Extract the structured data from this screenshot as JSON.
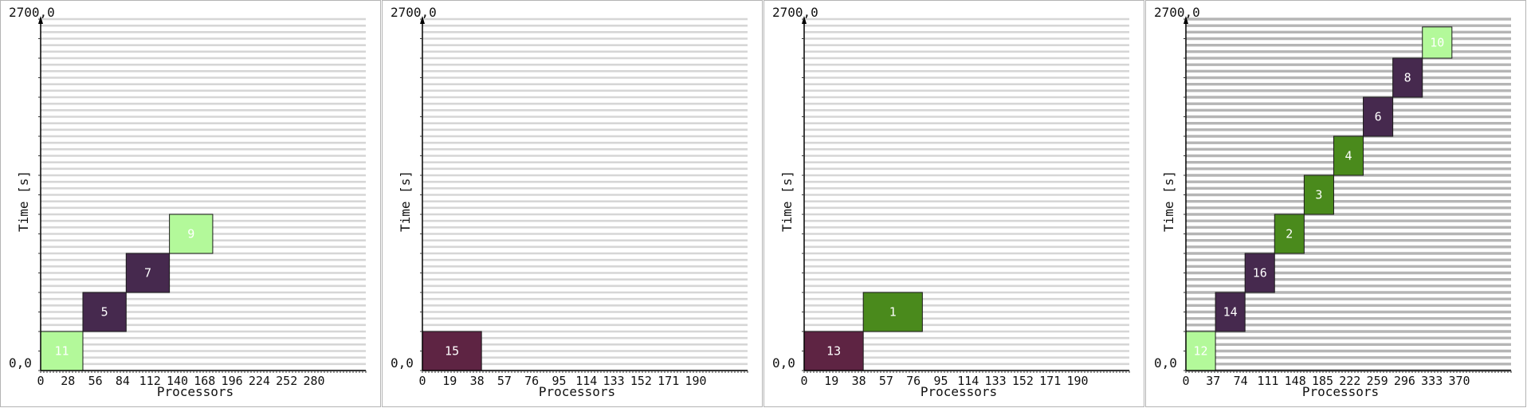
{
  "colors": {
    "light_green": "#b3f99a",
    "dark_purple": "#46294e",
    "maroon": "#5e2443",
    "green": "#4a8a1c",
    "grid_light": "#d6d6d6",
    "grid_dark": "#b5b5b5",
    "axis": "#000000"
  },
  "chart_data": [
    {
      "type": "gantt",
      "title": "",
      "xlabel": "Processors",
      "ylabel": "Time [s]",
      "y_top_label": "2700,0",
      "y_bottom_label": "0,0",
      "xlim": [
        0,
        308
      ],
      "ylim": [
        0,
        2700
      ],
      "x_ticks": [
        "0",
        "28",
        "56",
        "84",
        "112",
        "140",
        "168",
        "196",
        "224",
        "252",
        "280"
      ],
      "grid": "light",
      "jobs": [
        {
          "id": "11",
          "x0": 0,
          "x1": 40,
          "y0": 0,
          "y1": 300,
          "color": "light_green"
        },
        {
          "id": "5",
          "x0": 40,
          "x1": 81,
          "y0": 300,
          "y1": 600,
          "color": "dark_purple"
        },
        {
          "id": "7",
          "x0": 81,
          "x1": 122,
          "y0": 600,
          "y1": 900,
          "color": "dark_purple"
        },
        {
          "id": "9",
          "x0": 122,
          "x1": 163,
          "y0": 900,
          "y1": 1200,
          "color": "light_green"
        }
      ]
    },
    {
      "type": "gantt",
      "title": "",
      "xlabel": "Processors",
      "ylabel": "Time [s]",
      "y_top_label": "2700,0",
      "y_bottom_label": "0,0",
      "xlim": [
        0,
        209
      ],
      "ylim": [
        0,
        2700
      ],
      "x_ticks": [
        "0",
        "19",
        "38",
        "57",
        "76",
        "95",
        "114",
        "133",
        "152",
        "171",
        "190"
      ],
      "grid": "light",
      "jobs": [
        {
          "id": "15",
          "x0": 0,
          "x1": 38,
          "y0": 0,
          "y1": 300,
          "color": "maroon"
        }
      ]
    },
    {
      "type": "gantt",
      "title": "",
      "xlabel": "Processors",
      "ylabel": "Time [s]",
      "y_top_label": "2700,0",
      "y_bottom_label": "0,0",
      "xlim": [
        0,
        209
      ],
      "ylim": [
        0,
        2700
      ],
      "x_ticks": [
        "0",
        "19",
        "38",
        "57",
        "76",
        "95",
        "114",
        "133",
        "152",
        "171",
        "190"
      ],
      "grid": "light",
      "jobs": [
        {
          "id": "13",
          "x0": 0,
          "x1": 38,
          "y0": 0,
          "y1": 300,
          "color": "maroon"
        },
        {
          "id": "1",
          "x0": 38,
          "x1": 76,
          "y0": 300,
          "y1": 600,
          "color": "green"
        }
      ]
    },
    {
      "type": "gantt",
      "title": "",
      "xlabel": "Processors",
      "ylabel": "Time [s]",
      "y_top_label": "2700,0",
      "y_bottom_label": "0,0",
      "xlim": [
        0,
        407
      ],
      "ylim": [
        0,
        2700
      ],
      "x_ticks": [
        "0",
        "37",
        "74",
        "111",
        "148",
        "185",
        "222",
        "259",
        "296",
        "333",
        "370"
      ],
      "grid": "dark",
      "jobs": [
        {
          "id": "12",
          "x0": 0,
          "x1": 37,
          "y0": 0,
          "y1": 300,
          "color": "light_green"
        },
        {
          "id": "14",
          "x0": 37,
          "x1": 74,
          "y0": 300,
          "y1": 600,
          "color": "dark_purple"
        },
        {
          "id": "16",
          "x0": 74,
          "x1": 111,
          "y0": 600,
          "y1": 900,
          "color": "dark_purple"
        },
        {
          "id": "2",
          "x0": 111,
          "x1": 148,
          "y0": 900,
          "y1": 1200,
          "color": "green"
        },
        {
          "id": "3",
          "x0": 148,
          "x1": 185,
          "y0": 1200,
          "y1": 1500,
          "color": "green"
        },
        {
          "id": "4",
          "x0": 185,
          "x1": 222,
          "y0": 1500,
          "y1": 1800,
          "color": "green"
        },
        {
          "id": "6",
          "x0": 222,
          "x1": 259,
          "y0": 1800,
          "y1": 2100,
          "color": "dark_purple"
        },
        {
          "id": "8",
          "x0": 259,
          "x1": 296,
          "y0": 2100,
          "y1": 2400,
          "color": "dark_purple"
        },
        {
          "id": "10",
          "x0": 296,
          "x1": 333,
          "y0": 2400,
          "y1": 2640,
          "color": "light_green"
        }
      ]
    }
  ]
}
